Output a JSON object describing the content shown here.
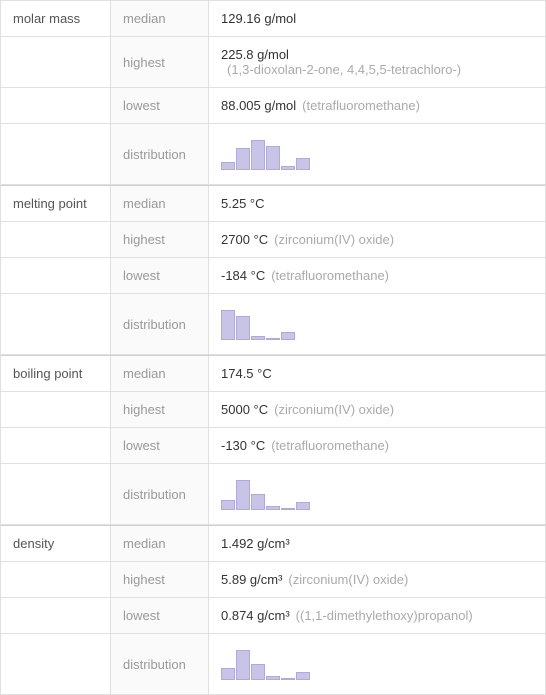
{
  "properties": [
    {
      "name": "molar mass",
      "rows": [
        {
          "label": "median",
          "value": "129.16 g/mol",
          "secondary": ""
        },
        {
          "label": "highest",
          "value": "225.8 g/mol",
          "secondary": "(1,3-dioxolan-2-one, 4,4,5,5-tetrachloro-)",
          "stacked": true
        },
        {
          "label": "lowest",
          "value": "88.005 g/mol",
          "secondary": "(tetrafluoromethane)"
        },
        {
          "label": "distribution",
          "histogram": [
            8,
            22,
            30,
            24,
            4,
            12
          ]
        }
      ]
    },
    {
      "name": "melting point",
      "rows": [
        {
          "label": "median",
          "value": "5.25 °C",
          "secondary": ""
        },
        {
          "label": "highest",
          "value": "2700 °C",
          "secondary": "(zirconium(IV) oxide)"
        },
        {
          "label": "lowest",
          "value": "-184 °C",
          "secondary": "(tetrafluoromethane)"
        },
        {
          "label": "distribution",
          "histogram": [
            30,
            24,
            4,
            0,
            8
          ]
        }
      ]
    },
    {
      "name": "boiling point",
      "rows": [
        {
          "label": "median",
          "value": "174.5 °C",
          "secondary": ""
        },
        {
          "label": "highest",
          "value": "5000 °C",
          "secondary": "(zirconium(IV) oxide)"
        },
        {
          "label": "lowest",
          "value": "-130 °C",
          "secondary": "(tetrafluoromethane)"
        },
        {
          "label": "distribution",
          "histogram": [
            10,
            30,
            16,
            4,
            0,
            8
          ]
        }
      ]
    },
    {
      "name": "density",
      "rows": [
        {
          "label": "median",
          "value": "1.492 g/cm³",
          "secondary": ""
        },
        {
          "label": "highest",
          "value": "5.89 g/cm³",
          "secondary": "(zirconium(IV) oxide)"
        },
        {
          "label": "lowest",
          "value": "0.874 g/cm³",
          "secondary": "((1,1-dimethylethoxy)propanol)"
        },
        {
          "label": "distribution",
          "histogram": [
            12,
            30,
            16,
            4,
            0,
            8
          ]
        }
      ]
    }
  ],
  "colors": {
    "border": "#e0e0e0",
    "col1_text": "#888",
    "col1_dark": "#555",
    "col2_text": "#999",
    "col2_bg": "#fafafa",
    "col3_text": "#333",
    "secondary_text": "#aaa",
    "bar_fill": "#c8c4e8",
    "bar_border": "#b0aad8"
  }
}
